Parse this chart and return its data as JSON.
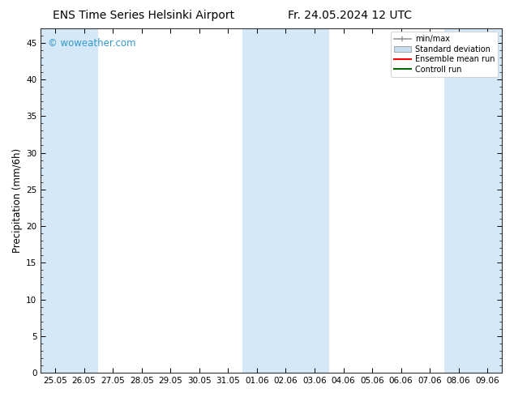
{
  "title_left": "ENS Time Series Helsinki Airport",
  "title_right": "Fr. 24.05.2024 12 UTC",
  "ylabel": "Precipitation (mm/6h)",
  "watermark": "© woweather.com",
  "watermark_color": "#3399cc",
  "ylim": [
    0,
    47
  ],
  "yticks": [
    0,
    5,
    10,
    15,
    20,
    25,
    30,
    35,
    40,
    45
  ],
  "xtick_labels": [
    "25.05",
    "26.05",
    "27.05",
    "28.05",
    "29.05",
    "30.05",
    "31.05",
    "01.06",
    "02.06",
    "03.06",
    "04.06",
    "05.06",
    "06.06",
    "07.06",
    "08.06",
    "09.06"
  ],
  "background_color": "#ffffff",
  "plot_bg_color": "#ffffff",
  "shaded_columns": [
    0,
    1,
    7,
    8,
    9,
    14,
    15
  ],
  "shaded_color": "#d5e8f7",
  "legend_items": [
    {
      "label": "min/max",
      "color": "#999999",
      "type": "errorbar"
    },
    {
      "label": "Standard deviation",
      "color": "#c8ddf0",
      "type": "box"
    },
    {
      "label": "Ensemble mean run",
      "color": "#ff0000",
      "type": "line"
    },
    {
      "label": "Controll run",
      "color": "#006600",
      "type": "line"
    }
  ],
  "title_fontsize": 10,
  "tick_fontsize": 7.5,
  "ylabel_fontsize": 8.5,
  "n_columns": 16
}
